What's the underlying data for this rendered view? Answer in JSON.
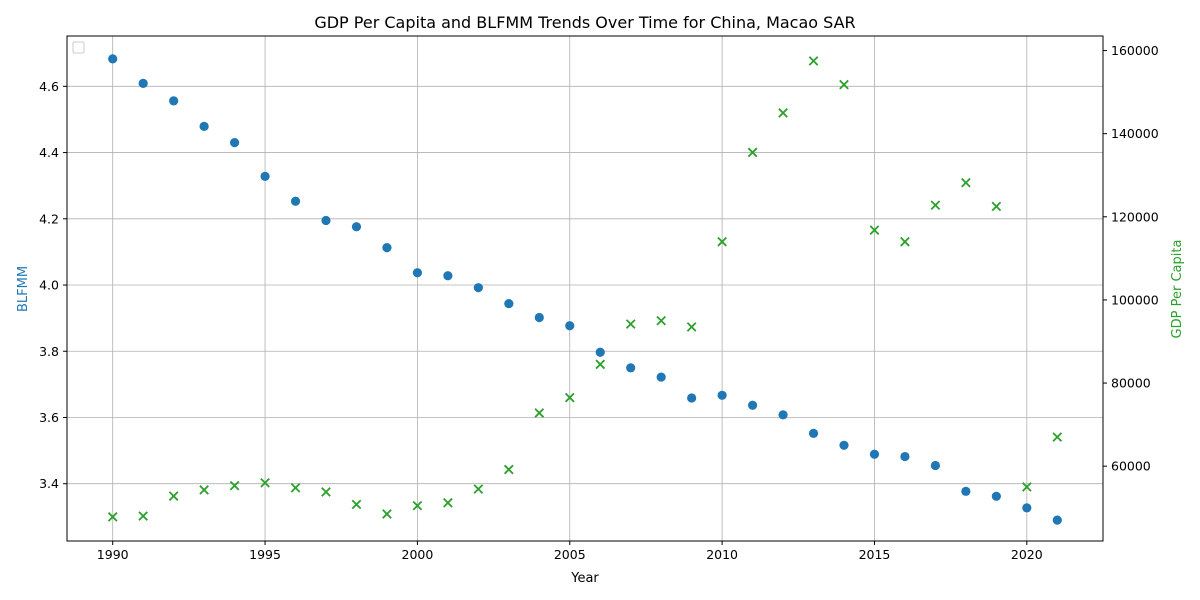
{
  "chart_data": {
    "type": "scatter",
    "title": "GDP Per Capita and BLFMM Trends Over Time for China, Macao SAR",
    "xlabel": "Year",
    "ylabel_left": "BLFMM",
    "ylabel_right": "GDP Per Capita",
    "xlim": [
      1988.5,
      2022.5
    ],
    "ylim_left": [
      3.227,
      4.752
    ],
    "ylim_right": [
      42000,
      163500
    ],
    "x_ticks": [
      "1990",
      "1995",
      "2000",
      "2005",
      "2010",
      "2015",
      "2020"
    ],
    "y_ticks_left": [
      "3.4",
      "3.6",
      "3.8",
      "4.0",
      "4.2",
      "4.4",
      "4.6"
    ],
    "y_ticks_right": [
      "60000",
      "80000",
      "100000",
      "120000",
      "140000",
      "160000"
    ],
    "grid": true,
    "legend": {
      "placement": "top-left",
      "entries": []
    },
    "colors": {
      "blfmm": "#1f77b4",
      "gdp": "#2ca02c",
      "grid": "#b0b0b0"
    },
    "x": [
      1990,
      1991,
      1992,
      1993,
      1994,
      1995,
      1996,
      1997,
      1998,
      1999,
      2000,
      2001,
      2002,
      2003,
      2004,
      2005,
      2006,
      2007,
      2008,
      2009,
      2010,
      2011,
      2012,
      2013,
      2014,
      2015,
      2016,
      2017,
      2018,
      2019,
      2020,
      2021
    ],
    "series": [
      {
        "name": "BLFMM",
        "axis": "left",
        "marker": "circle",
        "values": [
          4.683,
          4.609,
          4.556,
          4.479,
          4.43,
          4.328,
          4.253,
          4.195,
          4.176,
          4.113,
          4.037,
          4.028,
          3.992,
          3.944,
          3.902,
          3.877,
          3.797,
          3.75,
          3.722,
          3.659,
          3.667,
          3.637,
          3.608,
          3.552,
          3.516,
          3.489,
          3.482,
          3.455,
          3.377,
          3.362,
          3.327,
          3.29
        ]
      },
      {
        "name": "GDP Per Capita",
        "axis": "right",
        "marker": "x",
        "values": [
          47800,
          48000,
          52800,
          54300,
          55300,
          56000,
          54800,
          53800,
          50800,
          48500,
          50500,
          51200,
          54500,
          59200,
          72800,
          76500,
          84500,
          94200,
          95000,
          93500,
          114000,
          135500,
          145000,
          157500,
          151800,
          116800,
          114000,
          122800,
          128200,
          122500,
          55000,
          67000
        ]
      }
    ]
  }
}
